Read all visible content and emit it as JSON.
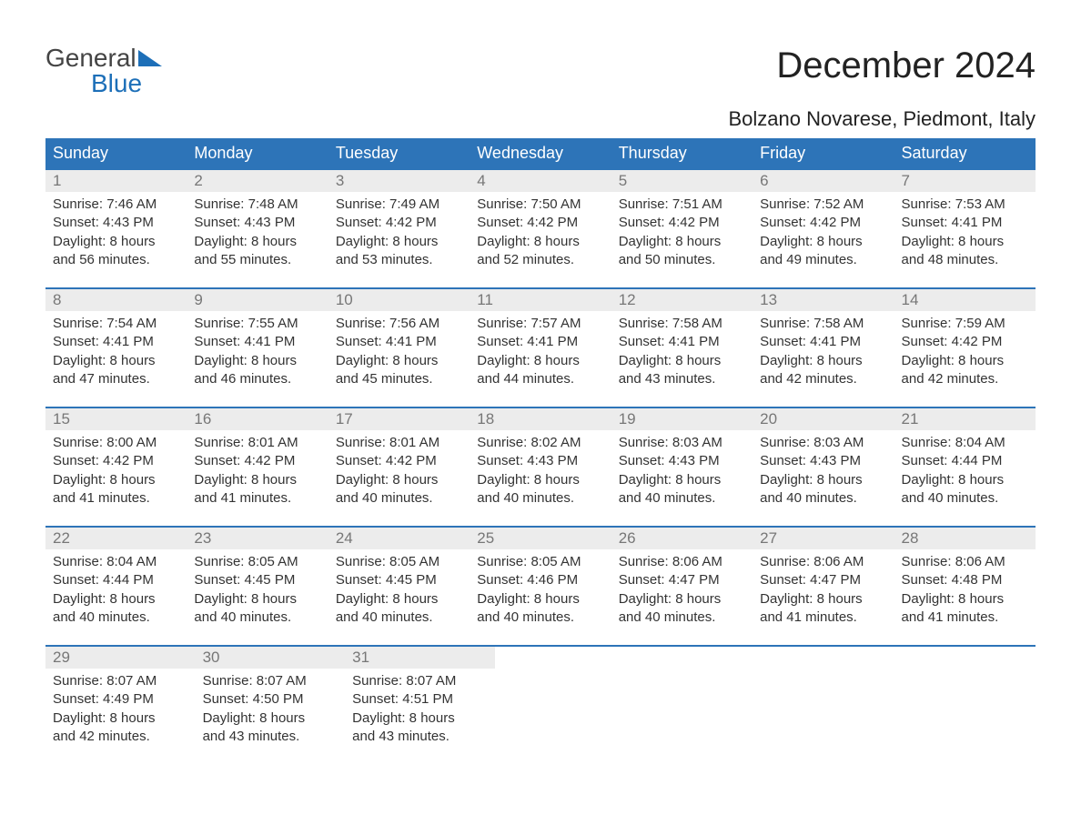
{
  "logo": {
    "word1": "General",
    "word2": "Blue",
    "icon_color": "#1d6fb8"
  },
  "title": "December 2024",
  "location": "Bolzano Novarese, Piedmont, Italy",
  "colors": {
    "header_bg": "#2d74b8",
    "header_text": "#ffffff",
    "date_bg": "#ececec",
    "date_text": "#777777",
    "week_border": "#2d74b8",
    "body_text": "#333333"
  },
  "day_names": [
    "Sunday",
    "Monday",
    "Tuesday",
    "Wednesday",
    "Thursday",
    "Friday",
    "Saturday"
  ],
  "weeks": [
    [
      {
        "date": "1",
        "sunrise": "7:46 AM",
        "sunset": "4:43 PM",
        "daylight_l1": "Daylight: 8 hours",
        "daylight_l2": "and 56 minutes."
      },
      {
        "date": "2",
        "sunrise": "7:48 AM",
        "sunset": "4:43 PM",
        "daylight_l1": "Daylight: 8 hours",
        "daylight_l2": "and 55 minutes."
      },
      {
        "date": "3",
        "sunrise": "7:49 AM",
        "sunset": "4:42 PM",
        "daylight_l1": "Daylight: 8 hours",
        "daylight_l2": "and 53 minutes."
      },
      {
        "date": "4",
        "sunrise": "7:50 AM",
        "sunset": "4:42 PM",
        "daylight_l1": "Daylight: 8 hours",
        "daylight_l2": "and 52 minutes."
      },
      {
        "date": "5",
        "sunrise": "7:51 AM",
        "sunset": "4:42 PM",
        "daylight_l1": "Daylight: 8 hours",
        "daylight_l2": "and 50 minutes."
      },
      {
        "date": "6",
        "sunrise": "7:52 AM",
        "sunset": "4:42 PM",
        "daylight_l1": "Daylight: 8 hours",
        "daylight_l2": "and 49 minutes."
      },
      {
        "date": "7",
        "sunrise": "7:53 AM",
        "sunset": "4:41 PM",
        "daylight_l1": "Daylight: 8 hours",
        "daylight_l2": "and 48 minutes."
      }
    ],
    [
      {
        "date": "8",
        "sunrise": "7:54 AM",
        "sunset": "4:41 PM",
        "daylight_l1": "Daylight: 8 hours",
        "daylight_l2": "and 47 minutes."
      },
      {
        "date": "9",
        "sunrise": "7:55 AM",
        "sunset": "4:41 PM",
        "daylight_l1": "Daylight: 8 hours",
        "daylight_l2": "and 46 minutes."
      },
      {
        "date": "10",
        "sunrise": "7:56 AM",
        "sunset": "4:41 PM",
        "daylight_l1": "Daylight: 8 hours",
        "daylight_l2": "and 45 minutes."
      },
      {
        "date": "11",
        "sunrise": "7:57 AM",
        "sunset": "4:41 PM",
        "daylight_l1": "Daylight: 8 hours",
        "daylight_l2": "and 44 minutes."
      },
      {
        "date": "12",
        "sunrise": "7:58 AM",
        "sunset": "4:41 PM",
        "daylight_l1": "Daylight: 8 hours",
        "daylight_l2": "and 43 minutes."
      },
      {
        "date": "13",
        "sunrise": "7:58 AM",
        "sunset": "4:41 PM",
        "daylight_l1": "Daylight: 8 hours",
        "daylight_l2": "and 42 minutes."
      },
      {
        "date": "14",
        "sunrise": "7:59 AM",
        "sunset": "4:42 PM",
        "daylight_l1": "Daylight: 8 hours",
        "daylight_l2": "and 42 minutes."
      }
    ],
    [
      {
        "date": "15",
        "sunrise": "8:00 AM",
        "sunset": "4:42 PM",
        "daylight_l1": "Daylight: 8 hours",
        "daylight_l2": "and 41 minutes."
      },
      {
        "date": "16",
        "sunrise": "8:01 AM",
        "sunset": "4:42 PM",
        "daylight_l1": "Daylight: 8 hours",
        "daylight_l2": "and 41 minutes."
      },
      {
        "date": "17",
        "sunrise": "8:01 AM",
        "sunset": "4:42 PM",
        "daylight_l1": "Daylight: 8 hours",
        "daylight_l2": "and 40 minutes."
      },
      {
        "date": "18",
        "sunrise": "8:02 AM",
        "sunset": "4:43 PM",
        "daylight_l1": "Daylight: 8 hours",
        "daylight_l2": "and 40 minutes."
      },
      {
        "date": "19",
        "sunrise": "8:03 AM",
        "sunset": "4:43 PM",
        "daylight_l1": "Daylight: 8 hours",
        "daylight_l2": "and 40 minutes."
      },
      {
        "date": "20",
        "sunrise": "8:03 AM",
        "sunset": "4:43 PM",
        "daylight_l1": "Daylight: 8 hours",
        "daylight_l2": "and 40 minutes."
      },
      {
        "date": "21",
        "sunrise": "8:04 AM",
        "sunset": "4:44 PM",
        "daylight_l1": "Daylight: 8 hours",
        "daylight_l2": "and 40 minutes."
      }
    ],
    [
      {
        "date": "22",
        "sunrise": "8:04 AM",
        "sunset": "4:44 PM",
        "daylight_l1": "Daylight: 8 hours",
        "daylight_l2": "and 40 minutes."
      },
      {
        "date": "23",
        "sunrise": "8:05 AM",
        "sunset": "4:45 PM",
        "daylight_l1": "Daylight: 8 hours",
        "daylight_l2": "and 40 minutes."
      },
      {
        "date": "24",
        "sunrise": "8:05 AM",
        "sunset": "4:45 PM",
        "daylight_l1": "Daylight: 8 hours",
        "daylight_l2": "and 40 minutes."
      },
      {
        "date": "25",
        "sunrise": "8:05 AM",
        "sunset": "4:46 PM",
        "daylight_l1": "Daylight: 8 hours",
        "daylight_l2": "and 40 minutes."
      },
      {
        "date": "26",
        "sunrise": "8:06 AM",
        "sunset": "4:47 PM",
        "daylight_l1": "Daylight: 8 hours",
        "daylight_l2": "and 40 minutes."
      },
      {
        "date": "27",
        "sunrise": "8:06 AM",
        "sunset": "4:47 PM",
        "daylight_l1": "Daylight: 8 hours",
        "daylight_l2": "and 41 minutes."
      },
      {
        "date": "28",
        "sunrise": "8:06 AM",
        "sunset": "4:48 PM",
        "daylight_l1": "Daylight: 8 hours",
        "daylight_l2": "and 41 minutes."
      }
    ],
    [
      {
        "date": "29",
        "sunrise": "8:07 AM",
        "sunset": "4:49 PM",
        "daylight_l1": "Daylight: 8 hours",
        "daylight_l2": "and 42 minutes."
      },
      {
        "date": "30",
        "sunrise": "8:07 AM",
        "sunset": "4:50 PM",
        "daylight_l1": "Daylight: 8 hours",
        "daylight_l2": "and 43 minutes."
      },
      {
        "date": "31",
        "sunrise": "8:07 AM",
        "sunset": "4:51 PM",
        "daylight_l1": "Daylight: 8 hours",
        "daylight_l2": "and 43 minutes."
      },
      null,
      null,
      null,
      null
    ]
  ],
  "labels": {
    "sunrise": "Sunrise: ",
    "sunset": "Sunset: "
  }
}
